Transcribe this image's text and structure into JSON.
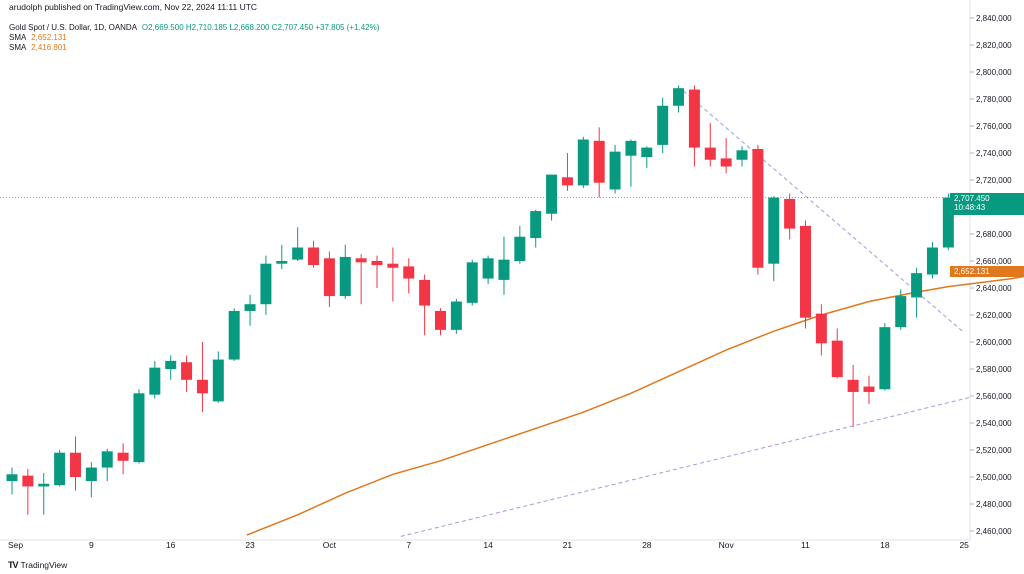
{
  "header": {
    "published_line": "arudolph published on TradingView.com, Nov 22, 2024 11:11 UTC",
    "symbol_line": "Gold Spot / U.S. Dollar, 1D, OANDA",
    "ohlc": "O2,669.500 H2,710.185 L2,668.200 C2,707.450 +37.805 (+1.42%)",
    "sma1_label": "SMA",
    "sma1_value": "2,652.131",
    "sma2_label": "SMA",
    "sma2_value": "2,416.801"
  },
  "price_tag": {
    "price": "2,707.450",
    "countdown": "10:48:43"
  },
  "sma_tag": "2,652.131",
  "footer": {
    "logo": "TV",
    "brand": "TradingView"
  },
  "colors": {
    "up": "#089981",
    "down": "#f23645",
    "sma": "#e0781d",
    "trend": "#9c9de0",
    "grid": "#f0f3fa"
  },
  "chart_data": {
    "type": "candlestick",
    "y_ticks": [
      "2,840,000",
      "2,820,000",
      "2,800,000",
      "2,780,000",
      "2,760,000",
      "2,740,000",
      "2,720,000",
      "2,700,000",
      "2,680,000",
      "2,660,000",
      "2,640,000",
      "2,620,000",
      "2,600,000",
      "2,580,000",
      "2,560,000",
      "2,540,000",
      "2,520,000",
      "2,500,000",
      "2,480,000",
      "2,460,000"
    ],
    "y_range": [
      2450,
      2845
    ],
    "x_labels": [
      "Sep",
      "9",
      "16",
      "23",
      "Oct",
      "7",
      "14",
      "21",
      "28",
      "Nov",
      "11",
      "18",
      "25"
    ],
    "candles": [
      {
        "o": 2497,
        "h": 2507,
        "l": 2487,
        "c": 2502
      },
      {
        "o": 2501,
        "h": 2506,
        "l": 2472,
        "c": 2493
      },
      {
        "o": 2493,
        "h": 2503,
        "l": 2472,
        "c": 2495
      },
      {
        "o": 2494,
        "h": 2520,
        "l": 2493,
        "c": 2518
      },
      {
        "o": 2518,
        "h": 2530,
        "l": 2490,
        "c": 2500
      },
      {
        "o": 2497,
        "h": 2511,
        "l": 2485,
        "c": 2507
      },
      {
        "o": 2507,
        "h": 2521,
        "l": 2497,
        "c": 2519
      },
      {
        "o": 2518,
        "h": 2525,
        "l": 2502,
        "c": 2512
      },
      {
        "o": 2511,
        "h": 2565,
        "l": 2510,
        "c": 2562
      },
      {
        "o": 2561,
        "h": 2586,
        "l": 2558,
        "c": 2581
      },
      {
        "o": 2580,
        "h": 2590,
        "l": 2572,
        "c": 2586
      },
      {
        "o": 2585,
        "h": 2590,
        "l": 2563,
        "c": 2572
      },
      {
        "o": 2572,
        "h": 2600,
        "l": 2548,
        "c": 2562
      },
      {
        "o": 2556,
        "h": 2593,
        "l": 2555,
        "c": 2587
      },
      {
        "o": 2587,
        "h": 2625,
        "l": 2586,
        "c": 2623
      },
      {
        "o": 2623,
        "h": 2635,
        "l": 2612,
        "c": 2628
      },
      {
        "o": 2628,
        "h": 2664,
        "l": 2620,
        "c": 2658
      },
      {
        "o": 2658,
        "h": 2672,
        "l": 2654,
        "c": 2660
      },
      {
        "o": 2661,
        "h": 2685,
        "l": 2660,
        "c": 2670
      },
      {
        "o": 2670,
        "h": 2675,
        "l": 2655,
        "c": 2657
      },
      {
        "o": 2662,
        "h": 2667,
        "l": 2626,
        "c": 2634
      },
      {
        "o": 2634,
        "h": 2672,
        "l": 2632,
        "c": 2663
      },
      {
        "o": 2662,
        "h": 2665,
        "l": 2628,
        "c": 2659
      },
      {
        "o": 2660,
        "h": 2664,
        "l": 2640,
        "c": 2657
      },
      {
        "o": 2658,
        "h": 2670,
        "l": 2630,
        "c": 2655
      },
      {
        "o": 2656,
        "h": 2662,
        "l": 2636,
        "c": 2647
      },
      {
        "o": 2646,
        "h": 2650,
        "l": 2605,
        "c": 2627
      },
      {
        "o": 2623,
        "h": 2625,
        "l": 2605,
        "c": 2609
      },
      {
        "o": 2609,
        "h": 2632,
        "l": 2606,
        "c": 2630
      },
      {
        "o": 2629,
        "h": 2661,
        "l": 2627,
        "c": 2659
      },
      {
        "o": 2647,
        "h": 2664,
        "l": 2643,
        "c": 2662
      },
      {
        "o": 2646,
        "h": 2678,
        "l": 2635,
        "c": 2661
      },
      {
        "o": 2660,
        "h": 2686,
        "l": 2658,
        "c": 2678
      },
      {
        "o": 2677,
        "h": 2698,
        "l": 2670,
        "c": 2697
      },
      {
        "o": 2695,
        "h": 2724,
        "l": 2690,
        "c": 2724
      },
      {
        "o": 2722,
        "h": 2740,
        "l": 2712,
        "c": 2716
      },
      {
        "o": 2716,
        "h": 2752,
        "l": 2714,
        "c": 2750
      },
      {
        "o": 2749,
        "h": 2759,
        "l": 2707,
        "c": 2718
      },
      {
        "o": 2713,
        "h": 2746,
        "l": 2710,
        "c": 2741
      },
      {
        "o": 2738,
        "h": 2750,
        "l": 2715,
        "c": 2749
      },
      {
        "o": 2737,
        "h": 2745,
        "l": 2729,
        "c": 2744
      },
      {
        "o": 2746,
        "h": 2781,
        "l": 2740,
        "c": 2775
      },
      {
        "o": 2775,
        "h": 2790,
        "l": 2770,
        "c": 2788
      },
      {
        "o": 2787,
        "h": 2790,
        "l": 2730,
        "c": 2744
      },
      {
        "o": 2744,
        "h": 2762,
        "l": 2730,
        "c": 2735
      },
      {
        "o": 2736,
        "h": 2751,
        "l": 2725,
        "c": 2730
      },
      {
        "o": 2735,
        "h": 2745,
        "l": 2730,
        "c": 2742
      },
      {
        "o": 2743,
        "h": 2746,
        "l": 2650,
        "c": 2655
      },
      {
        "o": 2658,
        "h": 2708,
        "l": 2645,
        "c": 2707
      },
      {
        "o": 2706,
        "h": 2710,
        "l": 2676,
        "c": 2684
      },
      {
        "o": 2686,
        "h": 2690,
        "l": 2610,
        "c": 2618
      },
      {
        "o": 2621,
        "h": 2628,
        "l": 2590,
        "c": 2599
      },
      {
        "o": 2601,
        "h": 2610,
        "l": 2573,
        "c": 2574
      },
      {
        "o": 2572,
        "h": 2583,
        "l": 2537,
        "c": 2563
      },
      {
        "o": 2567,
        "h": 2575,
        "l": 2554,
        "c": 2563
      },
      {
        "o": 2565,
        "h": 2614,
        "l": 2564,
        "c": 2611
      },
      {
        "o": 2611,
        "h": 2639,
        "l": 2609,
        "c": 2634
      },
      {
        "o": 2633,
        "h": 2655,
        "l": 2618,
        "c": 2651
      },
      {
        "o": 2650,
        "h": 2674,
        "l": 2647,
        "c": 2670
      },
      {
        "o": 2670,
        "h": 2710,
        "l": 2668,
        "c": 2707
      }
    ],
    "sma": [
      {
        "i": 14.8,
        "v": 2457
      },
      {
        "i": 18,
        "v": 2472
      },
      {
        "i": 21,
        "v": 2488
      },
      {
        "i": 24,
        "v": 2502
      },
      {
        "i": 27,
        "v": 2512
      },
      {
        "i": 30,
        "v": 2524
      },
      {
        "i": 33,
        "v": 2536
      },
      {
        "i": 36,
        "v": 2548
      },
      {
        "i": 39,
        "v": 2562
      },
      {
        "i": 42,
        "v": 2578
      },
      {
        "i": 45,
        "v": 2594
      },
      {
        "i": 48,
        "v": 2608
      },
      {
        "i": 51,
        "v": 2620
      },
      {
        "i": 54,
        "v": 2630
      },
      {
        "i": 57,
        "v": 2637
      },
      {
        "i": 59,
        "v": 2641
      },
      {
        "i": 61,
        "v": 2644
      },
      {
        "i": 63,
        "v": 2647
      },
      {
        "i": 65,
        "v": 2651
      },
      {
        "i": 66,
        "v": 2652
      }
    ]
  }
}
